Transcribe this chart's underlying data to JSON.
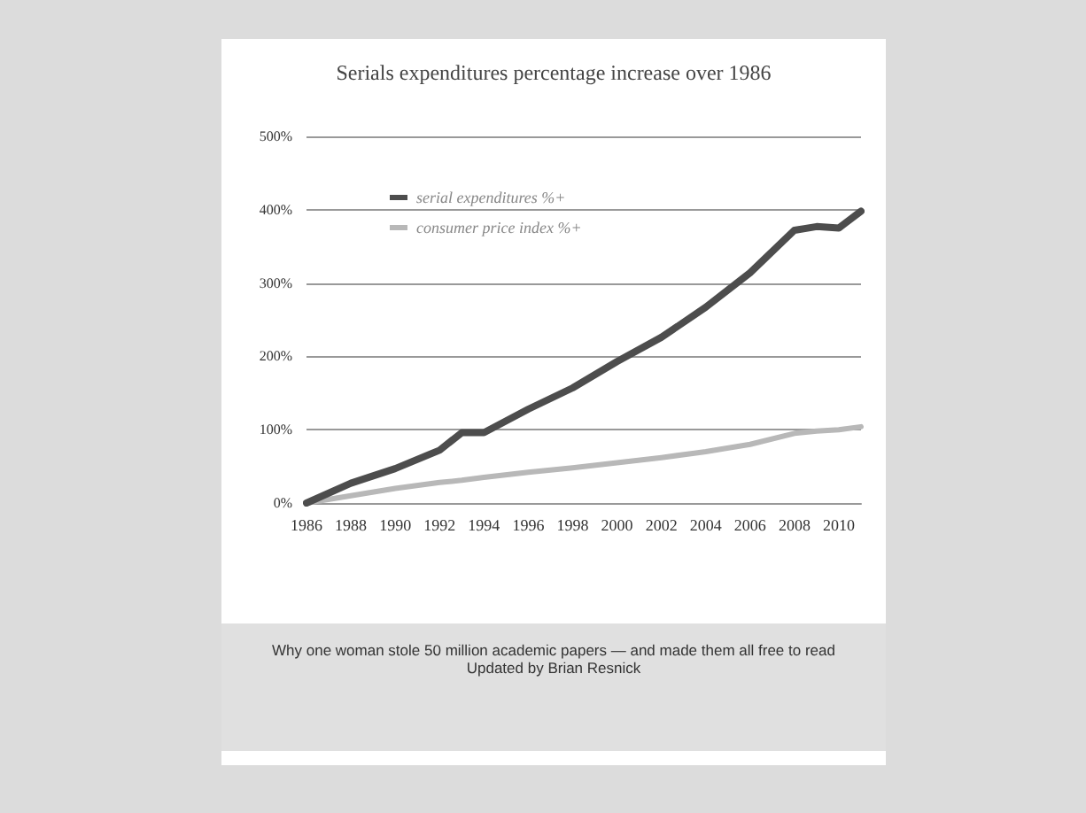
{
  "chart_data": {
    "type": "line",
    "title": "Serials expenditures percentage increase over 1986",
    "x": [
      1986,
      1988,
      1990,
      1992,
      1993,
      1994,
      1996,
      1998,
      2000,
      2002,
      2004,
      2006,
      2008,
      2009,
      2010,
      2011
    ],
    "series": [
      {
        "name": "serial expenditures %+",
        "color": "#4d4d4d",
        "values": [
          0,
          27,
          47,
          72,
          96,
          96,
          128,
          157,
          193,
          226,
          267,
          314,
          372,
          377,
          375,
          398
        ]
      },
      {
        "name": "consumer price index %+",
        "color": "#b8b8b8",
        "values": [
          0,
          10,
          20,
          28,
          31,
          35,
          42,
          48,
          55,
          62,
          70,
          80,
          95,
          98,
          100,
          104
        ]
      }
    ],
    "xlim": [
      1986,
      2011
    ],
    "xticks": [
      1986,
      1988,
      1990,
      1992,
      1994,
      1996,
      1998,
      2000,
      2002,
      2004,
      2006,
      2008,
      2010
    ],
    "ylim": [
      0,
      500
    ],
    "yticks": [
      {
        "value": 0,
        "label": "0%"
      },
      {
        "value": 100,
        "label": "100%"
      },
      {
        "value": 200,
        "label": "200%"
      },
      {
        "value": 300,
        "label": "300%"
      },
      {
        "value": 400,
        "label": "400%"
      },
      {
        "value": 500,
        "label": "500%"
      }
    ],
    "grid": "y",
    "legend": "top left",
    "marker": "none",
    "line_style": "solid",
    "annotations": [
      "Why one woman stole 50 million academic papers — and made them all free to read",
      "Updated by Brian Resnick"
    ]
  }
}
